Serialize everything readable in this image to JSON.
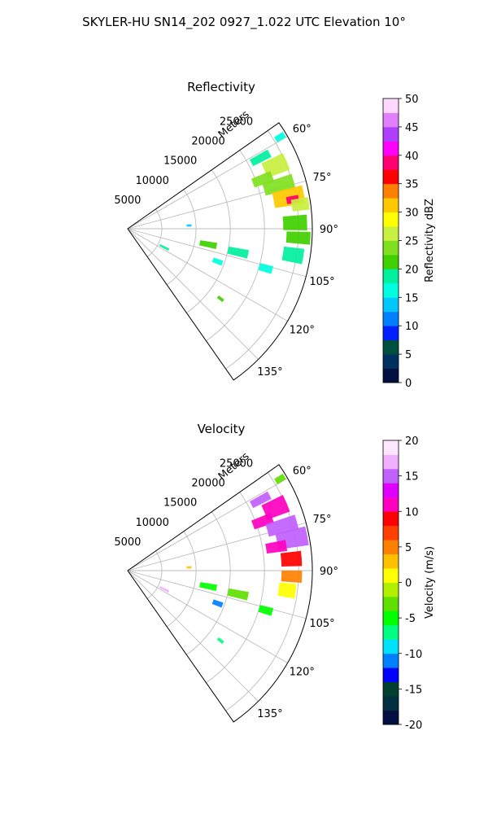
{
  "suptitle": "SKYLER-HU  SN14_202  0927_1.022 UTC Elevation 10°",
  "chart_data": [
    {
      "type": "polar-sector-radar",
      "title": "Reflectivity",
      "radial_axis_label": "Meters",
      "theta_range_deg": [
        55,
        145
      ],
      "r_range_m": [
        0,
        27000
      ],
      "r_ticks": [
        5000,
        10000,
        15000,
        20000,
        25000
      ],
      "r_tick_labels": [
        "5000",
        "10000",
        "15000",
        "20000",
        "25000"
      ],
      "theta_ticks_deg": [
        60,
        75,
        90,
        105,
        120,
        135
      ],
      "theta_tick_labels": [
        "60°",
        "75°",
        "90°",
        "105°",
        "120°",
        "135°"
      ],
      "grid": true,
      "colorbar": {
        "label": "Reflectivity dBZ",
        "range": [
          0,
          50
        ],
        "ticks": [
          0,
          5,
          10,
          15,
          20,
          25,
          30,
          35,
          40,
          45,
          50
        ],
        "tick_labels": [
          "0",
          "5",
          "10",
          "15",
          "20",
          "25",
          "30",
          "35",
          "40",
          "45",
          "50"
        ],
        "colormap": "HomeyerRainbow",
        "stops": [
          "#001040",
          "#003060",
          "#005040",
          "#0020ff",
          "#0080ff",
          "#00c8ff",
          "#00ffe0",
          "#00f0a0",
          "#40d000",
          "#80e020",
          "#c8f040",
          "#ffff00",
          "#ffc800",
          "#ff8000",
          "#ff0000",
          "#ff0070",
          "#ff00ff",
          "#b040ff",
          "#e080ff",
          "#ffd8ff"
        ]
      },
      "echo_cells": [
        {
          "theta": 67,
          "r": 23500,
          "dtheta": 6,
          "dr": 3500,
          "value": 26
        },
        {
          "theta": 70,
          "r": 21000,
          "dtheta": 4,
          "dr": 3000,
          "value": 23
        },
        {
          "theta": 74,
          "r": 23000,
          "dtheta": 5,
          "dr": 4500,
          "value": 24
        },
        {
          "theta": 79,
          "r": 24000,
          "dtheta": 6,
          "dr": 4500,
          "value": 30
        },
        {
          "theta": 80,
          "r": 24500,
          "dtheta": 2.5,
          "dr": 1800,
          "value": 38
        },
        {
          "theta": 82,
          "r": 25500,
          "dtheta": 4,
          "dr": 2500,
          "value": 26
        },
        {
          "theta": 88,
          "r": 24500,
          "dtheta": 5,
          "dr": 3500,
          "value": 21
        },
        {
          "theta": 93,
          "r": 25000,
          "dtheta": 4,
          "dr": 3500,
          "value": 22
        },
        {
          "theta": 99,
          "r": 24500,
          "dtheta": 5,
          "dr": 3000,
          "value": 19
        },
        {
          "theta": 62,
          "r": 22000,
          "dtheta": 3,
          "dr": 3000,
          "value": 18
        },
        {
          "theta": 59,
          "r": 26000,
          "dtheta": 2,
          "dr": 1500,
          "value": 17
        },
        {
          "theta": 87,
          "r": 9000,
          "dtheta": 2,
          "dr": 700,
          "value": 14
        },
        {
          "theta": 101,
          "r": 12000,
          "dtheta": 4,
          "dr": 2500,
          "value": 20
        },
        {
          "theta": 102,
          "r": 16500,
          "dtheta": 4,
          "dr": 3000,
          "value": 19
        },
        {
          "theta": 106,
          "r": 21000,
          "dtheta": 3,
          "dr": 2000,
          "value": 16
        },
        {
          "theta": 110,
          "r": 14000,
          "dtheta": 3,
          "dr": 1500,
          "value": 17
        },
        {
          "theta": 117,
          "r": 6000,
          "dtheta": 3,
          "dr": 1500,
          "value": 18
        },
        {
          "theta": 127,
          "r": 17000,
          "dtheta": 1.5,
          "dr": 1000,
          "value": 20
        }
      ]
    },
    {
      "type": "polar-sector-radar",
      "title": "Velocity",
      "radial_axis_label": "Meters",
      "theta_range_deg": [
        55,
        145
      ],
      "r_range_m": [
        0,
        27000
      ],
      "r_ticks": [
        5000,
        10000,
        15000,
        20000,
        25000
      ],
      "r_tick_labels": [
        "5000",
        "10000",
        "15000",
        "20000",
        "25000"
      ],
      "theta_ticks_deg": [
        60,
        75,
        90,
        105,
        120,
        135
      ],
      "theta_tick_labels": [
        "60°",
        "75°",
        "90°",
        "105°",
        "120°",
        "135°"
      ],
      "grid": true,
      "colorbar": {
        "label": "Velocity (m/s)",
        "range": [
          -20,
          20
        ],
        "ticks": [
          -20,
          -15,
          -10,
          -5,
          0,
          5,
          10,
          15,
          20
        ],
        "tick_labels": [
          "-20",
          "-15",
          "-10",
          "-5",
          "0",
          "5",
          "10",
          "15",
          "20"
        ],
        "colormap": "BuDRd-radar",
        "stops": [
          "#001040",
          "#003040",
          "#004030",
          "#0000ff",
          "#0080ff",
          "#00e0ff",
          "#00ff80",
          "#00ff00",
          "#60e000",
          "#b0f000",
          "#ffff00",
          "#ffc000",
          "#ff8000",
          "#ff4000",
          "#ff0000",
          "#ff00c0",
          "#e000ff",
          "#c060ff",
          "#f0b0ff",
          "#ffe8ff"
        ]
      },
      "echo_cells": [
        {
          "theta": 67,
          "r": 23500,
          "dtheta": 6,
          "dr": 3500,
          "value": 10
        },
        {
          "theta": 70,
          "r": 21000,
          "dtheta": 4,
          "dr": 3000,
          "value": 11
        },
        {
          "theta": 74,
          "r": 23500,
          "dtheta": 5,
          "dr": 4500,
          "value": 15
        },
        {
          "theta": 79,
          "r": 24500,
          "dtheta": 6,
          "dr": 4500,
          "value": 14
        },
        {
          "theta": 81,
          "r": 22000,
          "dtheta": 4,
          "dr": 3000,
          "value": 11
        },
        {
          "theta": 86,
          "r": 24000,
          "dtheta": 5,
          "dr": 3000,
          "value": 8
        },
        {
          "theta": 92,
          "r": 24000,
          "dtheta": 4,
          "dr": 3000,
          "value": 4
        },
        {
          "theta": 97,
          "r": 23500,
          "dtheta": 5,
          "dr": 2500,
          "value": 1
        },
        {
          "theta": 62,
          "r": 22000,
          "dtheta": 3,
          "dr": 3000,
          "value": 14
        },
        {
          "theta": 59,
          "r": 26000,
          "dtheta": 2,
          "dr": 1500,
          "value": -3
        },
        {
          "theta": 87,
          "r": 9000,
          "dtheta": 2,
          "dr": 700,
          "value": 2
        },
        {
          "theta": 101,
          "r": 12000,
          "dtheta": 4,
          "dr": 2500,
          "value": -6
        },
        {
          "theta": 102,
          "r": 16500,
          "dtheta": 4,
          "dr": 3000,
          "value": -4
        },
        {
          "theta": 106,
          "r": 21000,
          "dtheta": 3,
          "dr": 2000,
          "value": -5
        },
        {
          "theta": 110,
          "r": 14000,
          "dtheta": 3,
          "dr": 1500,
          "value": -11
        },
        {
          "theta": 117,
          "r": 6000,
          "dtheta": 3,
          "dr": 1500,
          "value": 16
        },
        {
          "theta": 127,
          "r": 17000,
          "dtheta": 1.5,
          "dr": 1000,
          "value": -8
        }
      ]
    }
  ]
}
